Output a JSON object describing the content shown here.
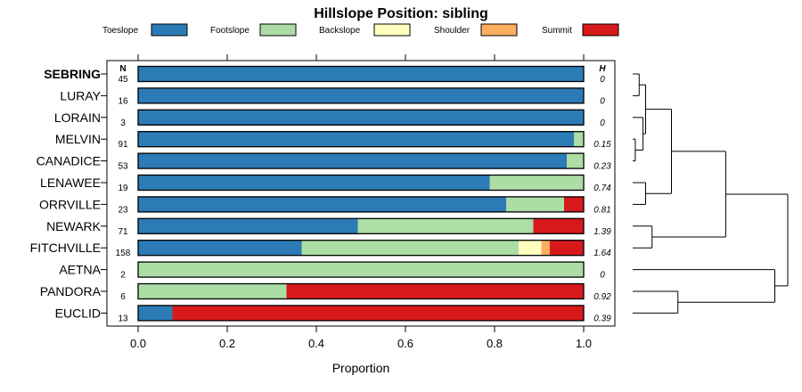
{
  "chart_data": {
    "type": "bar",
    "orientation": "horizontal",
    "stacked": true,
    "title": "Hillslope Position: sibling",
    "xlabel": "Proportion",
    "xlim": [
      0,
      1
    ],
    "xticks": [
      "0.0",
      "0.2",
      "0.4",
      "0.6",
      "0.8",
      "1.0"
    ],
    "legend_placement": "top",
    "n_header": "N",
    "h_header": "H",
    "series": [
      {
        "name": "Toeslope",
        "color": "#2c7bb6"
      },
      {
        "name": "Footslope",
        "color": "#abdda4"
      },
      {
        "name": "Backslope",
        "color": "#ffffbf"
      },
      {
        "name": "Shoulder",
        "color": "#fdae61"
      },
      {
        "name": "Summit",
        "color": "#d7191c"
      }
    ],
    "categories": [
      {
        "label": "SEBRING",
        "bold": true,
        "n": "45",
        "h": "0",
        "values": [
          1.0,
          0,
          0,
          0,
          0
        ]
      },
      {
        "label": "LURAY",
        "bold": false,
        "n": "16",
        "h": "0",
        "values": [
          1.0,
          0,
          0,
          0,
          0
        ]
      },
      {
        "label": "LORAIN",
        "bold": false,
        "n": "3",
        "h": "0",
        "values": [
          1.0,
          0,
          0,
          0,
          0
        ]
      },
      {
        "label": "MELVIN",
        "bold": false,
        "n": "91",
        "h": "0.15",
        "values": [
          0.978,
          0.022,
          0,
          0,
          0
        ]
      },
      {
        "label": "CANADICE",
        "bold": false,
        "n": "53",
        "h": "0.23",
        "values": [
          0.962,
          0.038,
          0,
          0,
          0
        ]
      },
      {
        "label": "LENAWEE",
        "bold": false,
        "n": "19",
        "h": "0.74",
        "values": [
          0.789,
          0.211,
          0,
          0,
          0
        ]
      },
      {
        "label": "ORRVILLE",
        "bold": false,
        "n": "23",
        "h": "0.81",
        "values": [
          0.826,
          0.13,
          0,
          0,
          0.044
        ]
      },
      {
        "label": "NEWARK",
        "bold": false,
        "n": "71",
        "h": "1.39",
        "values": [
          0.493,
          0.394,
          0,
          0,
          0.113
        ]
      },
      {
        "label": "FITCHVILLE",
        "bold": false,
        "n": "158",
        "h": "1.64",
        "values": [
          0.367,
          0.487,
          0.051,
          0.019,
          0.076
        ]
      },
      {
        "label": "AETNA",
        "bold": false,
        "n": "2",
        "h": "0",
        "values": [
          0,
          1.0,
          0,
          0,
          0
        ]
      },
      {
        "label": "PANDORA",
        "bold": false,
        "n": "6",
        "h": "0.92",
        "values": [
          0,
          0.333,
          0,
          0,
          0.667
        ]
      },
      {
        "label": "EUCLID",
        "bold": false,
        "n": "13",
        "h": "0.39",
        "values": [
          0.077,
          0,
          0,
          0,
          0.923
        ]
      }
    ],
    "dendrogram": {
      "leaves": [
        "SEBRING",
        "LURAY",
        "LORAIN",
        "MELVIN",
        "CANADICE",
        "LENAWEE",
        "ORRVILLE",
        "NEWARK",
        "FITCHVILLE",
        "AETNA",
        "PANDORA",
        "EUCLID"
      ],
      "merges": [
        {
          "a": "SEBRING",
          "b": "LURAY",
          "height": 0.05
        },
        {
          "a": "MELVIN",
          "b": "CANADICE",
          "height": 0.02
        },
        {
          "a": "LORAIN",
          "b": "MELVIN+CANADICE",
          "height": 0.08
        },
        {
          "a": "SEBRING+LURAY",
          "b": "LORAIN+MELVIN+CANADICE",
          "height": 0.1
        },
        {
          "a": "LENAWEE",
          "b": "ORRVILLE",
          "height": 0.1
        },
        {
          "a": "A",
          "b": "LENAWEE+ORRVILLE",
          "height": 0.3
        },
        {
          "a": "NEWARK",
          "b": "FITCHVILLE",
          "height": 0.15
        },
        {
          "a": "B",
          "b": "NEWARK+FITCHVILLE",
          "height": 0.72
        },
        {
          "a": "PANDORA",
          "b": "EUCLID",
          "height": 0.35
        },
        {
          "a": "AETNA",
          "b": "PANDORA+EUCLID",
          "height": 1.1
        },
        {
          "a": "C",
          "b": "AETNA+PANDORA+EUCLID",
          "height": 1.2
        }
      ]
    }
  }
}
